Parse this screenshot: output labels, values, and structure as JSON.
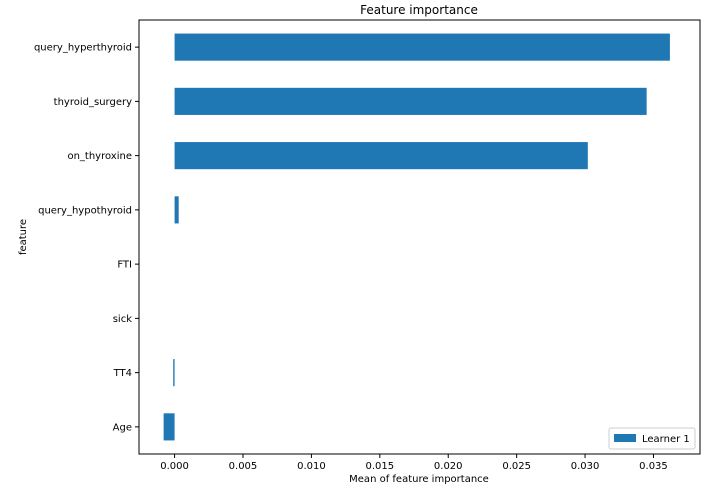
{
  "chart_data": {
    "type": "bar",
    "orientation": "horizontal",
    "title": "Feature importance",
    "xlabel": "Mean of feature importance",
    "ylabel": "feature",
    "categories": [
      "query_hyperthyroid",
      "thyroid_surgery",
      "on_thyroxine",
      "query_hypothyroid",
      "FTI",
      "sick",
      "TT4",
      "Age"
    ],
    "series": [
      {
        "name": "Learner 1",
        "color": "#1f77b4",
        "values": [
          0.0362,
          0.0345,
          0.0302,
          0.0003,
          0.0,
          0.0,
          -0.0001,
          -0.0008
        ]
      }
    ],
    "xlim": [
      -0.0026,
      0.0384
    ],
    "xticks": [
      0.0,
      0.005,
      0.01,
      0.015,
      0.02,
      0.025,
      0.03,
      0.035
    ],
    "xtick_labels": [
      "0.000",
      "0.005",
      "0.010",
      "0.015",
      "0.020",
      "0.025",
      "0.030",
      "0.035"
    ],
    "grid": false,
    "legend_position": "lower-right"
  }
}
